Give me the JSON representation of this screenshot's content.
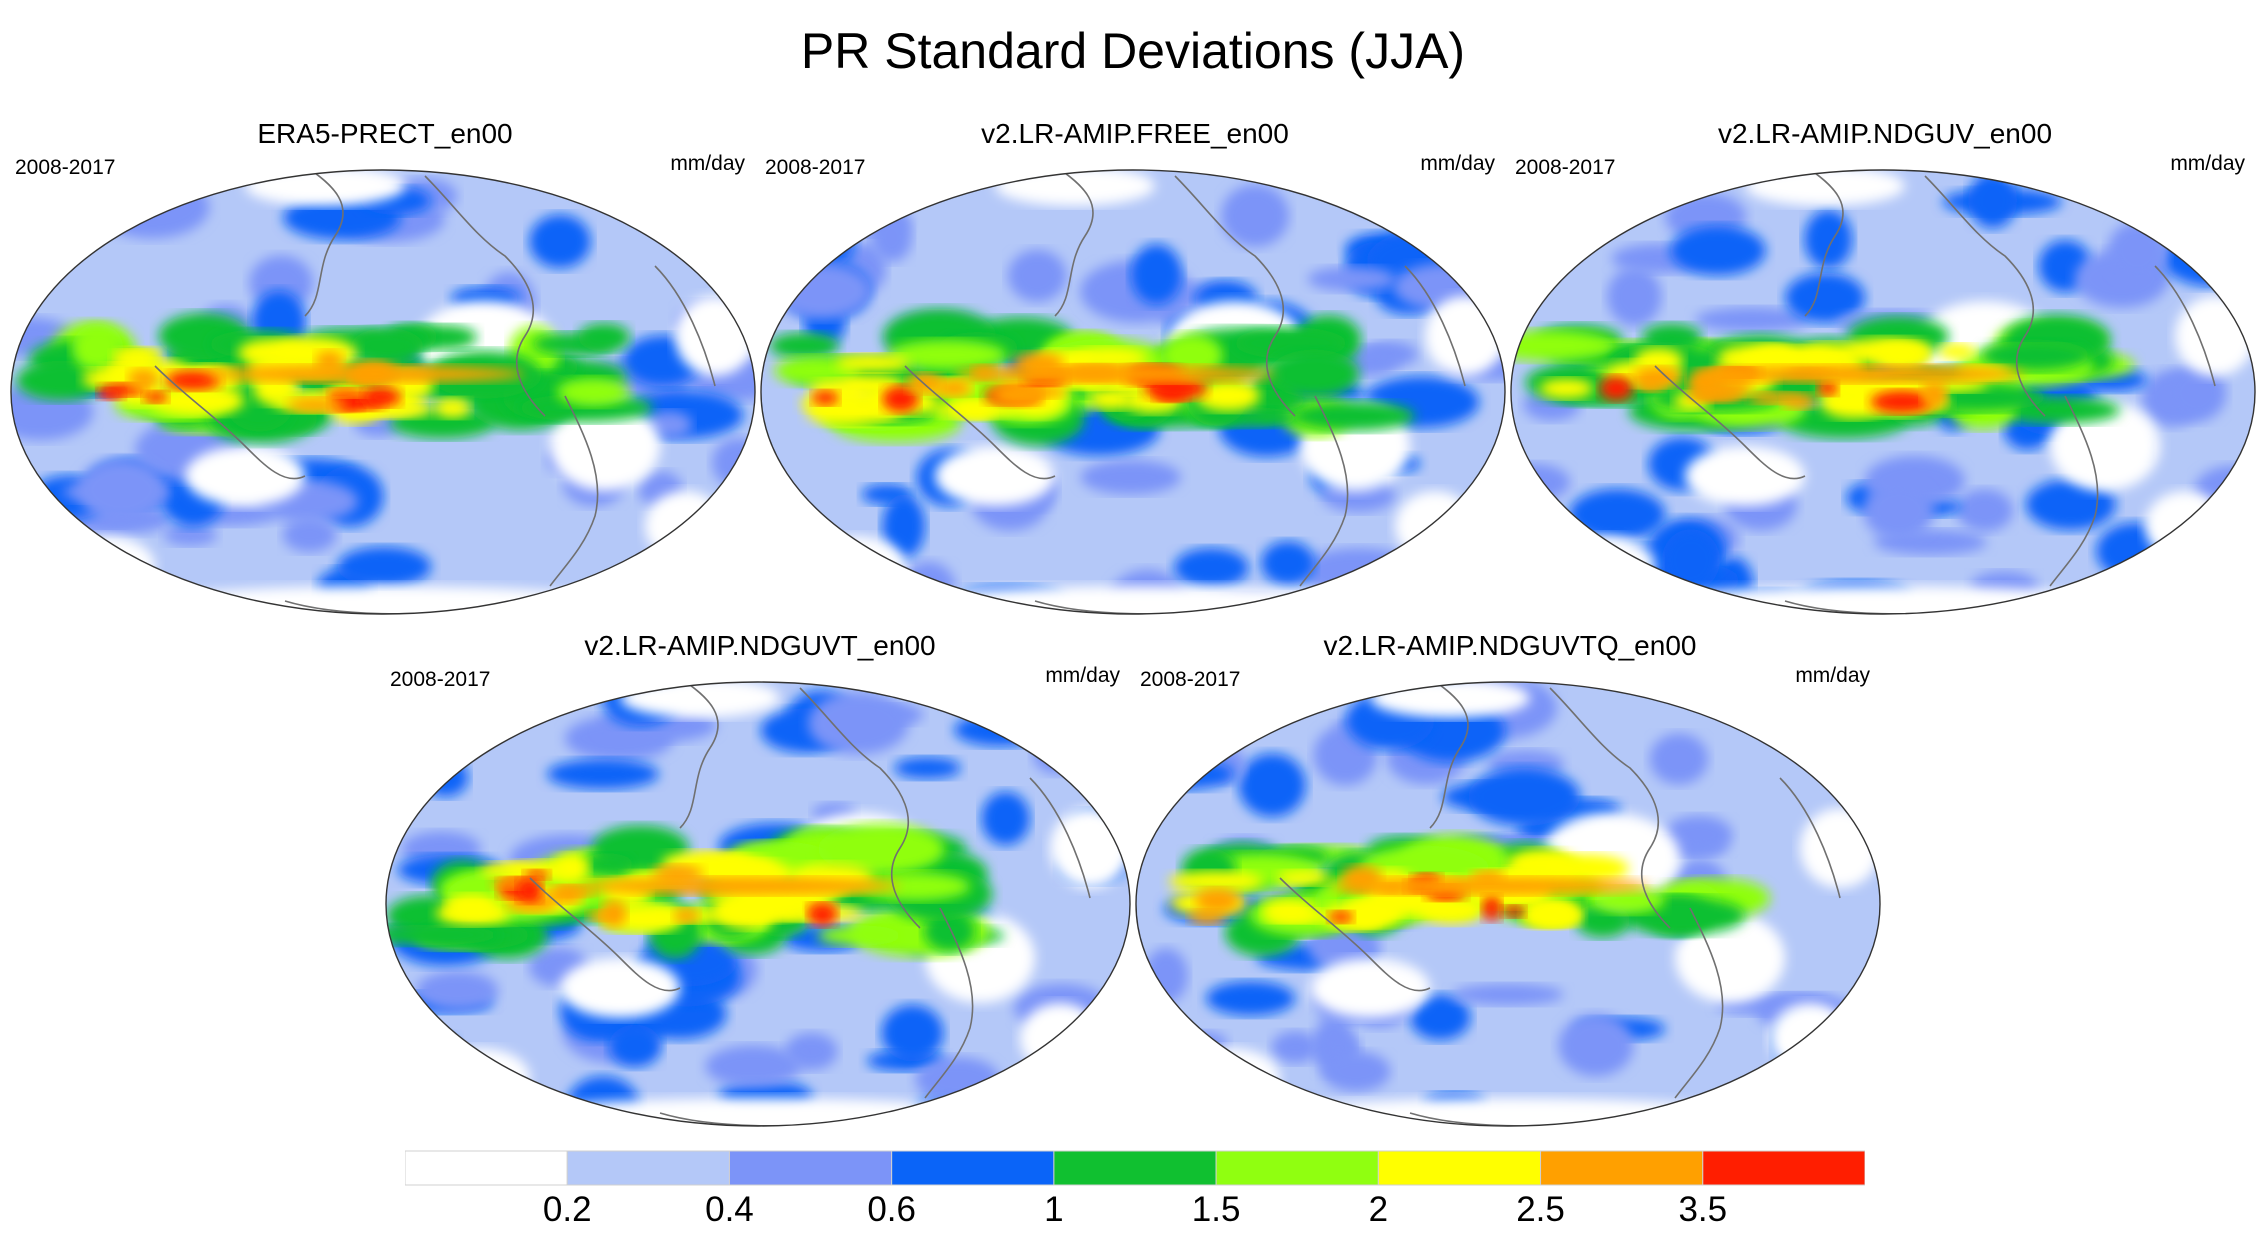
{
  "title": "PR Standard Deviations (JJA)",
  "panels": [
    {
      "name": "ERA5-PRECT_en00",
      "period": "2008-2017",
      "units": "mm/day",
      "intensity": "high"
    },
    {
      "name": "v2.LR-AMIP.FREE_en00",
      "period": "2008-2017",
      "units": "mm/day",
      "intensity": "very-high"
    },
    {
      "name": "v2.LR-AMIP.NDGUV_en00",
      "period": "2008-2017",
      "units": "mm/day",
      "intensity": "very-high"
    },
    {
      "name": "v2.LR-AMIP.NDGUVT_en00",
      "period": "2008-2017",
      "units": "mm/day",
      "intensity": "high"
    },
    {
      "name": "v2.LR-AMIP.NDGUVTQ_en00",
      "period": "2008-2017",
      "units": "mm/day",
      "intensity": "medium"
    }
  ],
  "colorbar": {
    "labels": [
      "0.2",
      "0.4",
      "0.6",
      "1",
      "1.5",
      "2",
      "2.5",
      "3.5"
    ],
    "colors": [
      "#ffffff",
      "#b4c8f8",
      "#7c94f8",
      "#0a64f8",
      "#10c030",
      "#90ff10",
      "#ffff00",
      "#ffa000",
      "#ff1e00"
    ]
  }
}
